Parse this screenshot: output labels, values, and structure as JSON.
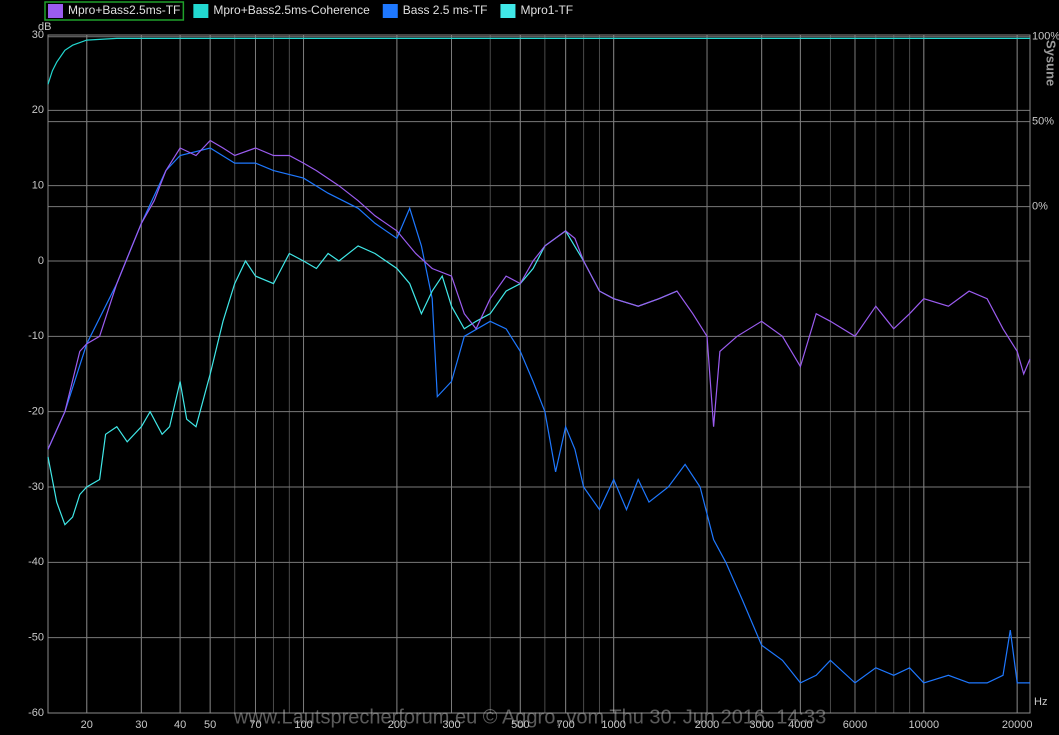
{
  "chart_data": {
    "type": "line",
    "y_label": "dB",
    "x_label": "Hz",
    "brand": "Sysune",
    "annotation": "www.Lautsprecherforum.eu © Aggro, vom Thu 30. Jun 2016, 14:33",
    "xscale": "log",
    "grid": true,
    "xlim": [
      15,
      22000
    ],
    "ylim": [
      -60,
      30
    ],
    "y2lim": [
      -298,
      101
    ],
    "xticks": [
      20,
      30,
      40,
      50,
      70,
      100,
      200,
      300,
      500,
      700,
      1000,
      2000,
      3000,
      4000,
      6000,
      10000,
      20000
    ],
    "yticks": [
      -60,
      -50,
      -40,
      -30,
      -20,
      -10,
      0,
      10,
      20,
      30
    ],
    "y2ticks": [
      {
        "value": 100,
        "label": "100%"
      },
      {
        "value": 50,
        "label": "50%"
      },
      {
        "value": 0,
        "label": "0%"
      }
    ],
    "series": [
      {
        "name": "Mpro+Bass2.5ms-TF",
        "color": "#9b5cf0",
        "x": [
          15,
          17,
          19,
          20,
          22,
          25,
          28,
          30,
          33,
          36,
          40,
          45,
          50,
          55,
          60,
          70,
          80,
          90,
          100,
          110,
          130,
          150,
          170,
          200,
          230,
          260,
          300,
          330,
          360,
          400,
          450,
          500,
          550,
          600,
          700,
          750,
          800,
          900,
          1000,
          1200,
          1400,
          1600,
          1800,
          2000,
          2100,
          2200,
          2500,
          3000,
          3500,
          4000,
          4500,
          5000,
          6000,
          7000,
          8000,
          9000,
          10000,
          12000,
          14000,
          16000,
          18000,
          20000,
          21000,
          22000
        ],
        "values": [
          -25,
          -20,
          -12,
          -11,
          -10,
          -3,
          2,
          5,
          8,
          12,
          15,
          14,
          16,
          15,
          14,
          15,
          14,
          14,
          13,
          12,
          10,
          8,
          6,
          4,
          1,
          -1,
          -2,
          -7,
          -9,
          -5,
          -2,
          -3,
          0,
          2,
          4,
          3,
          0,
          -4,
          -5,
          -6,
          -5,
          -4,
          -7,
          -10,
          -22,
          -12,
          -10,
          -8,
          -10,
          -14,
          -7,
          -8,
          -10,
          -6,
          -9,
          -7,
          -5,
          -6,
          -4,
          -5,
          -9,
          -12,
          -15,
          -13
        ]
      },
      {
        "name": "Mpro+Bass2.5ms-Coherence",
        "color": "#22d8d0",
        "axis": "y2",
        "x": [
          15,
          15.5,
          16,
          17,
          18,
          20,
          25,
          30,
          100,
          1000,
          10000,
          22000
        ],
        "values": [
          72,
          80,
          85,
          92,
          95,
          98,
          99,
          99,
          99,
          99,
          99,
          99
        ]
      },
      {
        "name": "Bass 2.5 ms-TF",
        "color": "#1e78ff",
        "x": [
          15,
          17,
          20,
          25,
          30,
          36,
          40,
          50,
          60,
          70,
          80,
          100,
          120,
          150,
          170,
          200,
          220,
          240,
          260,
          270,
          300,
          330,
          400,
          450,
          500,
          550,
          600,
          650,
          700,
          750,
          800,
          900,
          1000,
          1100,
          1200,
          1300,
          1500,
          1700,
          1900,
          2100,
          2300,
          2600,
          3000,
          3500,
          4000,
          4500,
          5000,
          6000,
          7000,
          8000,
          9000,
          10000,
          12000,
          14000,
          16000,
          18000,
          19000,
          20000,
          22000
        ],
        "values": [
          -25,
          -20,
          -11,
          -3,
          5,
          12,
          14,
          15,
          13,
          13,
          12,
          11,
          9,
          7,
          5,
          3,
          7,
          2,
          -5,
          -18,
          -16,
          -10,
          -8,
          -9,
          -12,
          -16,
          -20,
          -28,
          -22,
          -25,
          -30,
          -33,
          -29,
          -33,
          -29,
          -32,
          -30,
          -27,
          -30,
          -37,
          -40,
          -45,
          -51,
          -53,
          -56,
          -55,
          -53,
          -56,
          -54,
          -55,
          -54,
          -56,
          -55,
          -56,
          -56,
          -55,
          -49,
          -56,
          -56
        ]
      },
      {
        "name": "Mpro1-TF",
        "color": "#40e8e8",
        "x": [
          15,
          16,
          17,
          18,
          19,
          20,
          22,
          23,
          25,
          27,
          30,
          32,
          35,
          37,
          40,
          42,
          45,
          50,
          55,
          60,
          65,
          70,
          80,
          90,
          100,
          110,
          120,
          130,
          150,
          170,
          200,
          220,
          240,
          260,
          280,
          300,
          330,
          360,
          400,
          450,
          500,
          550,
          600,
          700,
          800,
          900,
          1000,
          1200,
          1400,
          1600
        ],
        "values": [
          -26,
          -32,
          -35,
          -34,
          -31,
          -30,
          -29,
          -23,
          -22,
          -24,
          -22,
          -20,
          -23,
          -22,
          -16,
          -21,
          -22,
          -15,
          -8,
          -3,
          0,
          -2,
          -3,
          1,
          0,
          -1,
          1,
          0,
          2,
          1,
          -1,
          -3,
          -7,
          -4,
          -2,
          -6,
          -9,
          -8,
          -7,
          -4,
          -3,
          -1,
          2,
          4,
          0,
          -4,
          -5,
          -6,
          -5,
          -4
        ]
      }
    ]
  }
}
